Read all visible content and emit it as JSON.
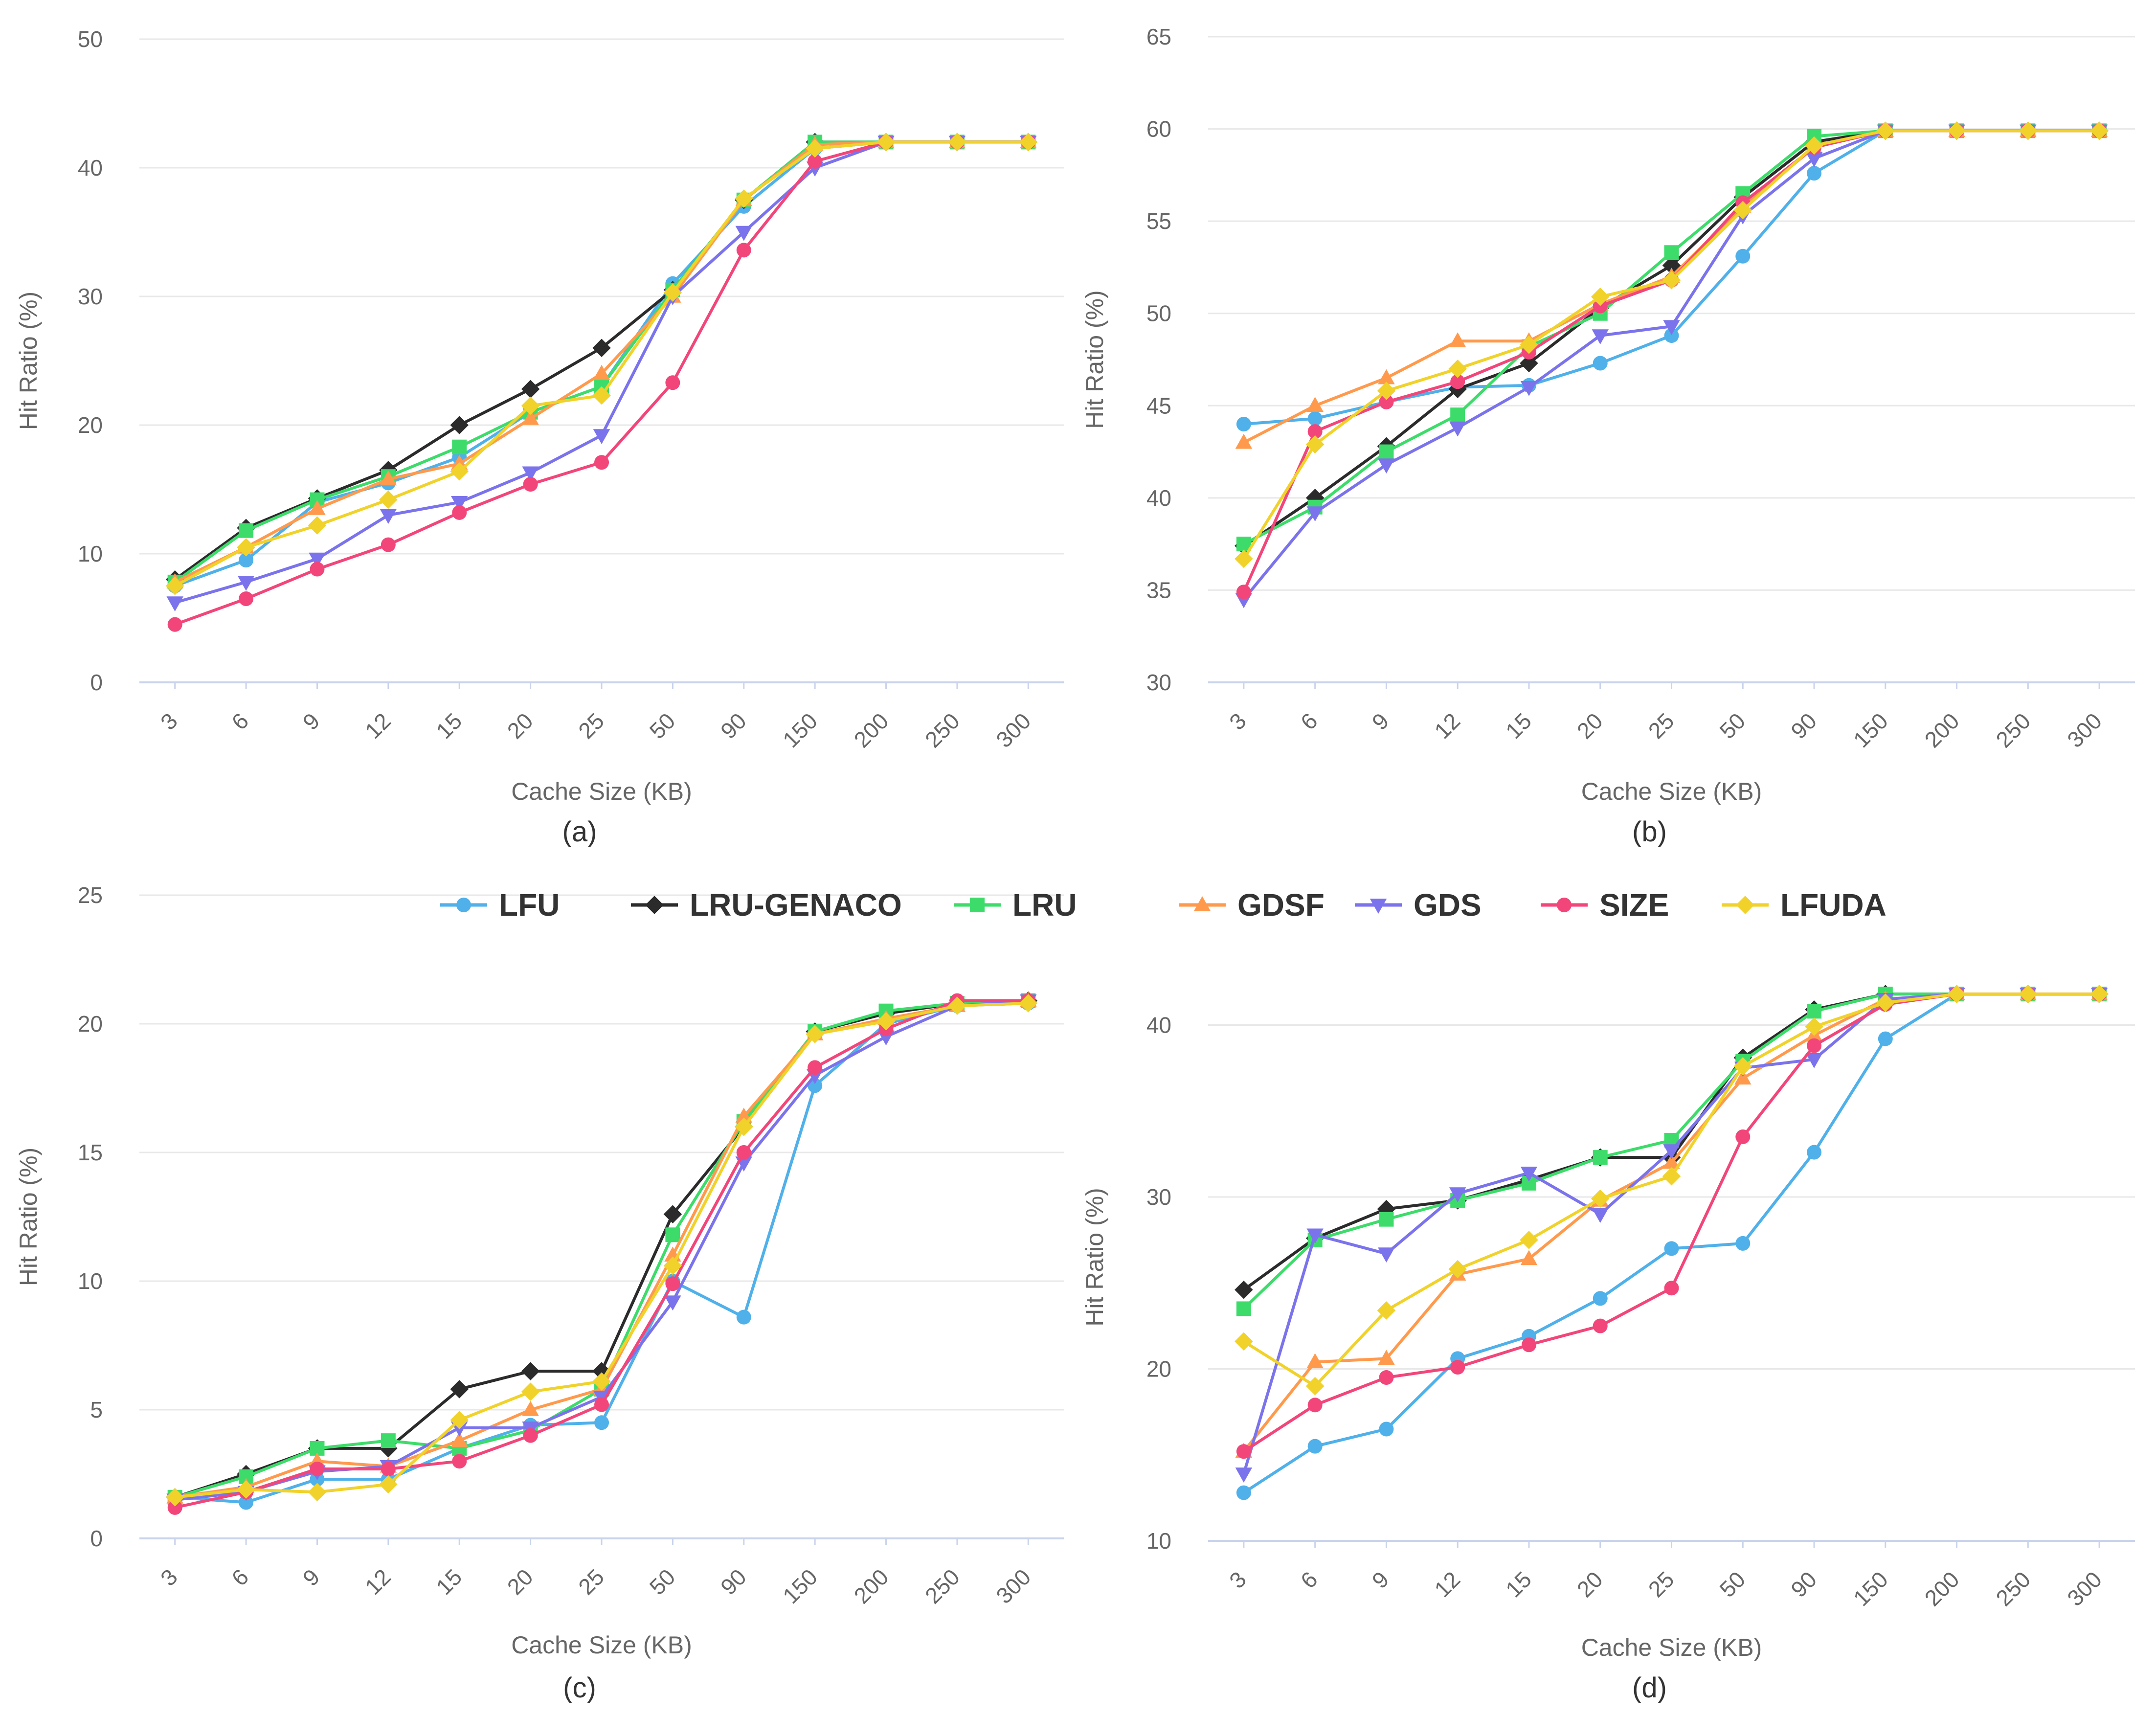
{
  "legend": [
    {
      "name": "LFU",
      "color": "#4fb0ea",
      "marker": "circle"
    },
    {
      "name": "LRU-GENACO",
      "color": "#2b2b2b",
      "marker": "diamond"
    },
    {
      "name": "LRU",
      "color": "#3ddc6a",
      "marker": "square"
    },
    {
      "name": "GDSF",
      "color": "#ff9a4d",
      "marker": "triangle-up"
    },
    {
      "name": "GDS",
      "color": "#7b73ec",
      "marker": "triangle-down"
    },
    {
      "name": "SIZE",
      "color": "#f2467a",
      "marker": "circle"
    },
    {
      "name": "LFUDA",
      "color": "#f0d22a",
      "marker": "diamond"
    }
  ],
  "chart_data": [
    {
      "type": "line",
      "panel": "a",
      "caption": "(a)",
      "xlabel": "Cache Size (KB)",
      "ylabel": "Hit Ratio (%)",
      "categories": [
        "3",
        "6",
        "9",
        "12",
        "15",
        "20",
        "25",
        "50",
        "90",
        "150",
        "200",
        "250",
        "300"
      ],
      "ylim": [
        0,
        50
      ],
      "yticks": [
        "0",
        "10",
        "20",
        "30",
        "40",
        "50"
      ],
      "series": [
        {
          "name": "LFU",
          "values": [
            7.5,
            9.5,
            14,
            15.5,
            17.5,
            21,
            23,
            31,
            37,
            41.5,
            42,
            42,
            42
          ]
        },
        {
          "name": "LRU-GENACO",
          "values": [
            8,
            12,
            14.3,
            16.5,
            20,
            22.8,
            26,
            30.5,
            37.5,
            42,
            42,
            42,
            42
          ]
        },
        {
          "name": "LRU",
          "values": [
            7.8,
            11.8,
            14.2,
            16,
            18.3,
            21,
            23,
            30.5,
            37.5,
            42,
            42,
            42,
            42
          ]
        },
        {
          "name": "GDSF",
          "values": [
            7.8,
            10.5,
            13.5,
            15.8,
            17,
            20.5,
            24,
            30,
            37.5,
            41.8,
            42,
            42,
            42
          ]
        },
        {
          "name": "GDS",
          "values": [
            6.2,
            7.8,
            9.6,
            13,
            14,
            16.3,
            19.2,
            30,
            35,
            40,
            42,
            42,
            42
          ]
        },
        {
          "name": "SIZE",
          "values": [
            4.5,
            6.5,
            8.8,
            10.7,
            13.2,
            15.4,
            17.1,
            23.3,
            33.6,
            40.5,
            42,
            42,
            42
          ]
        },
        {
          "name": "LFUDA",
          "values": [
            7.5,
            10.5,
            12.2,
            14.2,
            16.4,
            21.5,
            22.3,
            30.3,
            37.6,
            41.5,
            42,
            42,
            42
          ]
        }
      ]
    },
    {
      "type": "line",
      "panel": "b",
      "caption": "(b)",
      "xlabel": "Cache Size (KB)",
      "ylabel": "Hit Ratio (%)",
      "categories": [
        "3",
        "6",
        "9",
        "12",
        "15",
        "20",
        "25",
        "50",
        "90",
        "150",
        "200",
        "250",
        "300"
      ],
      "ylim": [
        30,
        65
      ],
      "yticks": [
        "30",
        "35",
        "40",
        "45",
        "50",
        "55",
        "60",
        "65"
      ],
      "series": [
        {
          "name": "LFU",
          "values": [
            44,
            44.3,
            45.2,
            46,
            46.1,
            47.3,
            48.8,
            53.1,
            57.6,
            59.9,
            59.9,
            59.9,
            59.9
          ]
        },
        {
          "name": "LRU-GENACO",
          "values": [
            37.4,
            40,
            42.8,
            45.9,
            47.3,
            50.3,
            52.6,
            56.3,
            59.3,
            59.9,
            59.9,
            59.9,
            59.9
          ]
        },
        {
          "name": "LRU",
          "values": [
            37.5,
            39.5,
            42.5,
            44.5,
            48.2,
            50,
            53.3,
            56.5,
            59.6,
            59.9,
            59.9,
            59.9,
            59.9
          ]
        },
        {
          "name": "GDSF",
          "values": [
            43,
            45,
            46.5,
            48.5,
            48.5,
            50.5,
            52,
            55.8,
            59,
            59.9,
            59.9,
            59.9,
            59.9
          ]
        },
        {
          "name": "GDS",
          "values": [
            34.5,
            39.2,
            41.8,
            43.8,
            46,
            48.8,
            49.3,
            55.3,
            58.4,
            59.9,
            59.9,
            59.9,
            59.9
          ]
        },
        {
          "name": "SIZE",
          "values": [
            34.9,
            43.6,
            45.2,
            46.3,
            47.9,
            50.4,
            51.8,
            56,
            59,
            59.9,
            59.9,
            59.9,
            59.9
          ]
        },
        {
          "name": "LFUDA",
          "values": [
            36.7,
            42.9,
            45.8,
            47,
            48.3,
            50.9,
            51.8,
            55.6,
            59.1,
            59.9,
            59.9,
            59.9,
            59.9
          ]
        }
      ]
    },
    {
      "type": "line",
      "panel": "c",
      "caption": "(c)",
      "xlabel": "Cache Size (KB)",
      "ylabel": "Hit Ratio (%)",
      "categories": [
        "3",
        "6",
        "9",
        "12",
        "15",
        "20",
        "25",
        "50",
        "90",
        "150",
        "200",
        "250",
        "300"
      ],
      "ylim": [
        0,
        25
      ],
      "yticks": [
        "0",
        "5",
        "10",
        "15",
        "20",
        "25"
      ],
      "series": [
        {
          "name": "LFU",
          "values": [
            1.6,
            1.4,
            2.3,
            2.3,
            3.5,
            4.4,
            4.5,
            10,
            8.6,
            17.6,
            20,
            20.7,
            20.8
          ]
        },
        {
          "name": "LRU-GENACO",
          "values": [
            1.6,
            2.5,
            3.5,
            3.5,
            5.8,
            6.5,
            6.5,
            12.6,
            16,
            19.7,
            20.4,
            20.8,
            20.9
          ]
        },
        {
          "name": "LRU",
          "values": [
            1.6,
            2.4,
            3.5,
            3.8,
            3.5,
            4.2,
            5.8,
            11.8,
            16.2,
            19.7,
            20.5,
            20.8,
            20.9
          ]
        },
        {
          "name": "GDSF",
          "values": [
            1.6,
            2,
            3,
            2.8,
            3.8,
            5,
            5.8,
            11,
            16.4,
            19.6,
            20.2,
            20.7,
            20.9
          ]
        },
        {
          "name": "GDS",
          "values": [
            1.5,
            1.8,
            2.6,
            2.8,
            4.3,
            4.3,
            5.5,
            9.2,
            14.6,
            18,
            19.5,
            20.7,
            20.9
          ]
        },
        {
          "name": "SIZE",
          "values": [
            1.2,
            1.8,
            2.7,
            2.7,
            3,
            4,
            5.2,
            9.9,
            15,
            18.3,
            19.8,
            20.9,
            20.9
          ]
        },
        {
          "name": "LFUDA",
          "values": [
            1.6,
            1.9,
            1.8,
            2.1,
            4.6,
            5.7,
            6.1,
            10.6,
            16,
            19.6,
            20.1,
            20.7,
            20.8
          ]
        }
      ]
    },
    {
      "type": "line",
      "panel": "d",
      "caption": "(d)",
      "xlabel": "Cache Size (KB)",
      "ylabel": "Hit Ratio (%)",
      "categories": [
        "3",
        "6",
        "9",
        "12",
        "15",
        "20",
        "25",
        "50",
        "90",
        "150",
        "200",
        "250",
        "300"
      ],
      "ylim": [
        10,
        43
      ],
      "yticks": [
        "10",
        "20",
        "30",
        "40"
      ],
      "series": [
        {
          "name": "LFU",
          "values": [
            12.8,
            15.5,
            16.5,
            20.6,
            21.9,
            24.1,
            27,
            27.3,
            32.6,
            39.2,
            41.8,
            41.8,
            41.8
          ]
        },
        {
          "name": "LRU-GENACO",
          "values": [
            24.6,
            27.6,
            29.3,
            29.8,
            31,
            32.3,
            32.3,
            38.1,
            40.9,
            41.8,
            41.8,
            41.8,
            41.8
          ]
        },
        {
          "name": "LRU",
          "values": [
            23.5,
            27.5,
            28.7,
            29.8,
            30.8,
            32.3,
            33.3,
            37.9,
            40.8,
            41.8,
            41.8,
            41.8,
            41.8
          ]
        },
        {
          "name": "GDSF",
          "values": [
            15.2,
            20.4,
            20.6,
            25.5,
            26.4,
            29.8,
            32,
            36.9,
            39.4,
            41.5,
            41.8,
            41.8,
            41.8
          ]
        },
        {
          "name": "GDS",
          "values": [
            13.9,
            27.8,
            26.7,
            30.2,
            31.4,
            29,
            32.7,
            37.5,
            38,
            41.5,
            41.8,
            41.8,
            41.8
          ]
        },
        {
          "name": "SIZE",
          "values": [
            15.2,
            17.9,
            19.5,
            20.1,
            21.4,
            22.5,
            24.7,
            33.5,
            38.8,
            41.2,
            41.8,
            41.8,
            41.8
          ]
        },
        {
          "name": "LFUDA",
          "values": [
            21.6,
            19,
            23.4,
            25.8,
            27.5,
            29.9,
            31.2,
            37.6,
            39.9,
            41.3,
            41.8,
            41.8,
            41.8
          ]
        }
      ]
    }
  ]
}
